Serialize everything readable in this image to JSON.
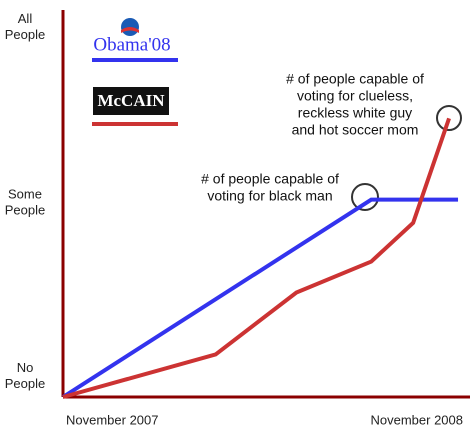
{
  "chart_data": {
    "type": "line",
    "xlim": [
      0,
      13.6
    ],
    "xticks": [
      {
        "value": 0,
        "label": "November 2007"
      },
      {
        "value": 12,
        "label": "November 2008"
      }
    ],
    "ylim": [
      0,
      2
    ],
    "yticks": [
      {
        "value": 0,
        "label": "No People"
      },
      {
        "value": 1,
        "label": "Some People"
      },
      {
        "value": 2,
        "label": "All People"
      }
    ],
    "axis_color": "#8b0000",
    "series": [
      {
        "name": "Obama'08",
        "color": "#3333ee",
        "x": [
          0,
          10.3,
          13.2
        ],
        "values": [
          0,
          1.02,
          1.02
        ]
      },
      {
        "name": "McCAIN",
        "color": "#cc3333",
        "x": [
          0,
          5.1,
          7.8,
          10.3,
          11.7,
          12.9
        ],
        "values": [
          0,
          0.22,
          0.54,
          0.7,
          0.9,
          1.44
        ]
      }
    ],
    "annotations": [
      {
        "lines": [
          "# of people capable of",
          "voting for black man"
        ]
      },
      {
        "lines": [
          "# of people capable of",
          "voting for clueless,",
          "reckless white guy",
          "and hot soccer mom"
        ]
      }
    ]
  }
}
